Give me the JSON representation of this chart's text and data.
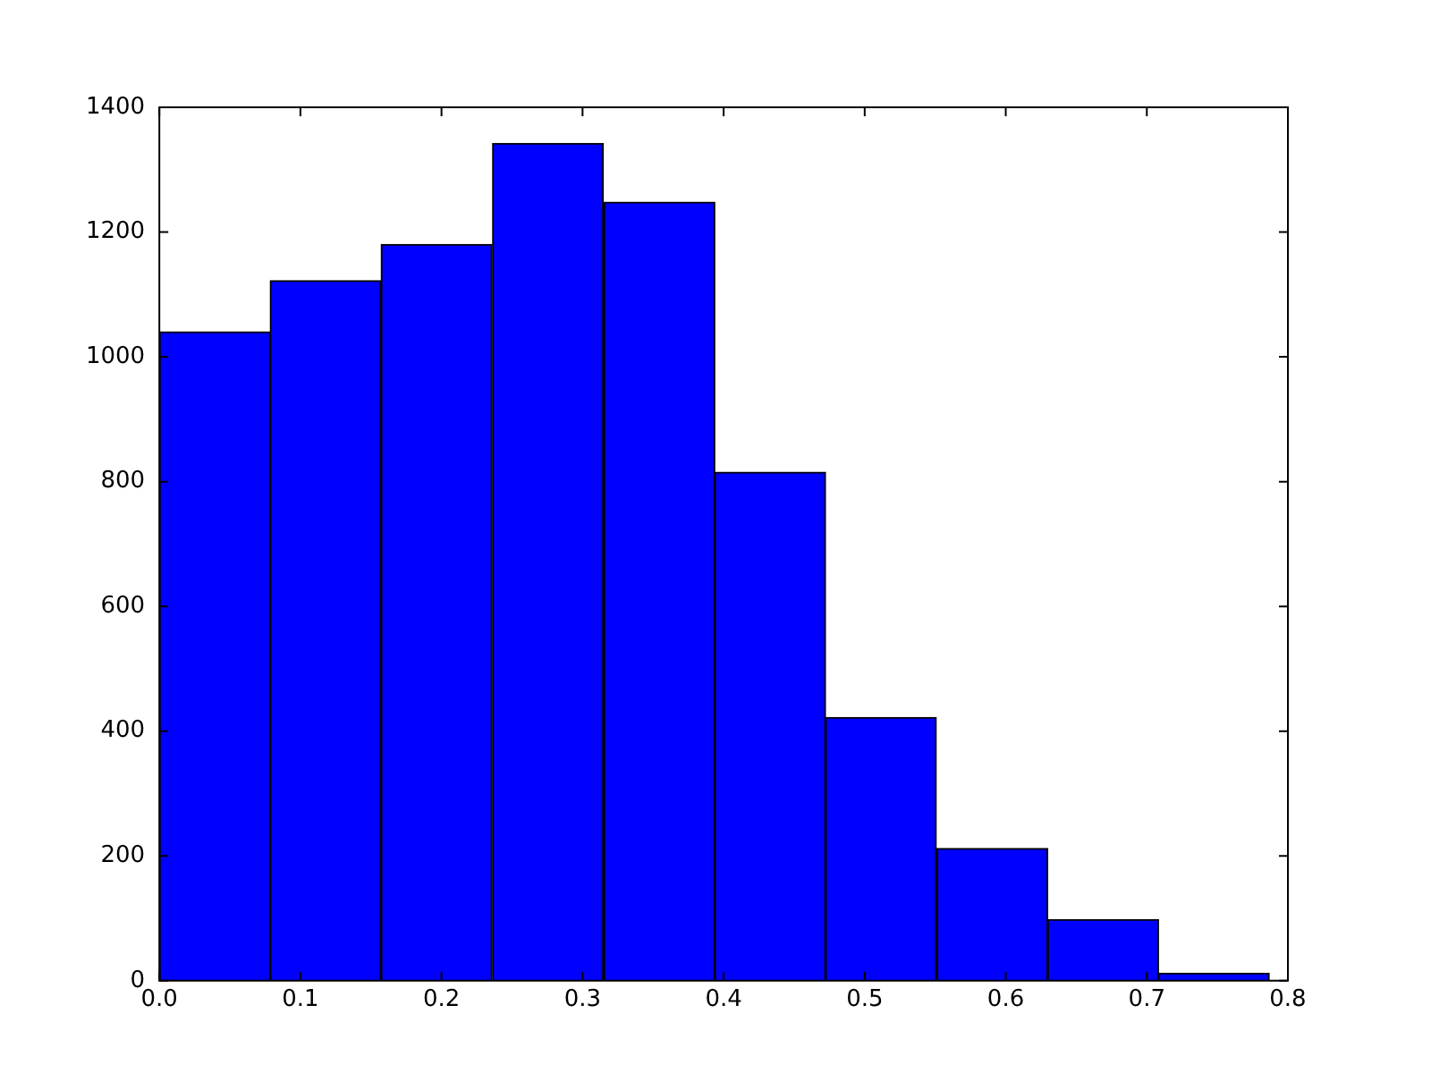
{
  "chart_data": {
    "type": "histogram",
    "bins": [
      0,
      0.0787,
      0.157,
      0.236,
      0.315,
      0.394,
      0.472,
      0.551,
      0.63,
      0.708,
      0.787
    ],
    "values": [
      1040,
      1122,
      1180,
      1342,
      1248,
      815,
      422,
      212,
      98,
      12
    ],
    "color": "#0000ff",
    "xlim": [
      0,
      0.8
    ],
    "xticks": [
      {
        "value": 0,
        "label": "0.0"
      },
      0.1,
      0.2,
      0.3,
      0.4,
      0.5,
      0.6,
      0.7,
      0.8
    ],
    "ylim": [
      0,
      1400
    ],
    "yticks": [
      0,
      200,
      400,
      600,
      800,
      1000,
      1200,
      1400
    ],
    "grid": false,
    "legend": false
  }
}
